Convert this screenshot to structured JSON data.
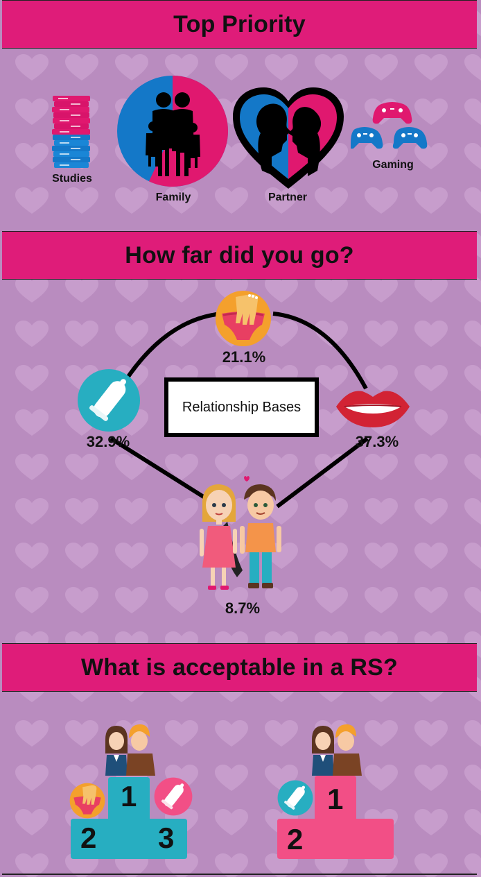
{
  "sections": {
    "top_priority": {
      "title": "Top Priority",
      "items": [
        {
          "label": "Studies",
          "icon": "books-stack-icon"
        },
        {
          "label": "Family",
          "icon": "family-pie-icon"
        },
        {
          "label": "Partner",
          "icon": "couple-heart-icon"
        },
        {
          "label": "Gaming",
          "icon": "game-controllers-icon"
        }
      ],
      "family_pie": {
        "pink_fraction": 0.57,
        "blue_fraction": 0.43
      }
    },
    "how_far": {
      "title": "How far did you go?",
      "center_label": "Relationship Bases",
      "bases": [
        {
          "name": "top",
          "icon": "hand-underwear-icon",
          "value": "21.1%"
        },
        {
          "name": "left",
          "icon": "condom-icon",
          "value": "32.9%"
        },
        {
          "name": "right",
          "icon": "lips-icon",
          "value": "37.3%"
        },
        {
          "name": "bottom",
          "icon": "couple-holding-hands-icon",
          "value": "8.7%"
        }
      ]
    },
    "acceptable": {
      "title": "What is acceptable in a RS?",
      "podiums": [
        {
          "color": "#27aec1",
          "ranks": [
            "1",
            "2",
            "3"
          ],
          "icons": [
            "couple-icon",
            "hand-underwear-icon",
            "condom-icon"
          ]
        },
        {
          "color": "#f24f86",
          "ranks": [
            "1",
            "2"
          ],
          "icons": [
            "couple-icon",
            "condom-icon"
          ]
        }
      ]
    }
  },
  "colors": {
    "background": "#b98cbf",
    "band": "#df1c79",
    "pink": "#e0186f",
    "blue": "#1478c8",
    "teal": "#27aec1",
    "podium_pink": "#f24f86",
    "heart": "#c79dcc"
  }
}
